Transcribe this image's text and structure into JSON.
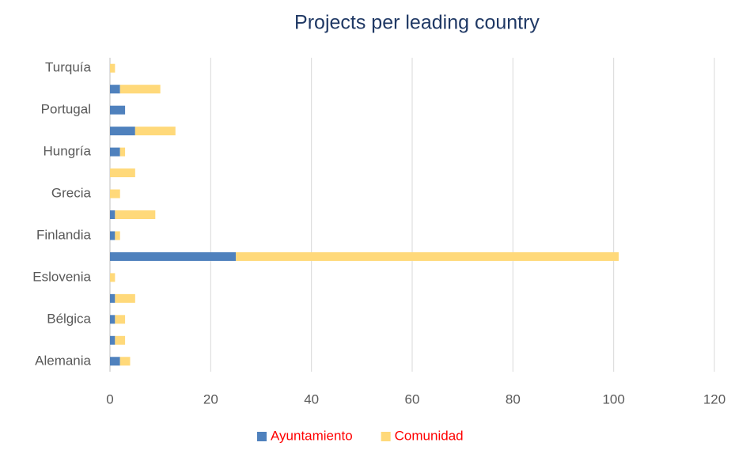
{
  "chart_data": {
    "type": "stacked_barh",
    "title": "Projects per leading country",
    "categories": [
      "Alemania",
      null,
      "Bélgica",
      null,
      "Eslovenia",
      null,
      "Finlandia",
      null,
      "Grecia",
      null,
      "Hungría",
      null,
      "Portugal",
      null,
      "Turquía"
    ],
    "series": [
      {
        "name": "Ayuntamiento",
        "color": "#4f81bd",
        "values": [
          2,
          1,
          1,
          1,
          0,
          25,
          1,
          1,
          0,
          0,
          2,
          5,
          3,
          2,
          0
        ]
      },
      {
        "name": "Comunidad",
        "color": "#ffd97a",
        "values": [
          2,
          2,
          2,
          4,
          1,
          76,
          1,
          8,
          2,
          5,
          1,
          8,
          0,
          8,
          1
        ]
      }
    ],
    "xlim": [
      0,
      120
    ],
    "xticks": [
      0,
      20,
      40,
      60,
      80,
      100,
      120
    ],
    "grid": true,
    "legend": "bottom",
    "legend_text_color": "#ff0000"
  }
}
